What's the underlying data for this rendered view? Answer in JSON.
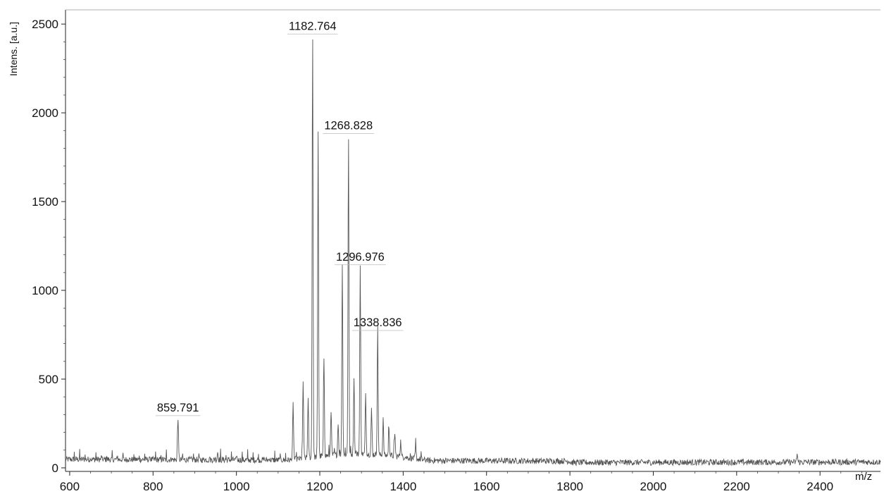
{
  "chart_data": {
    "type": "line",
    "title": "",
    "xlabel": "m/z",
    "ylabel": "Intens. [a.u.]",
    "xlim": [
      590,
      2545
    ],
    "ylim": [
      -20,
      2580
    ],
    "x_ticks": [
      600,
      800,
      1000,
      1200,
      1400,
      1600,
      1800,
      2000,
      2200,
      2400
    ],
    "x_tick_labels": [
      "600",
      "800",
      "1000",
      "1200",
      "1400",
      "1600",
      "1800",
      "2000",
      "2200",
      "2400"
    ],
    "y_ticks": [
      0,
      500,
      1000,
      1500,
      2000,
      2500
    ],
    "y_tick_labels": [
      "0",
      "500",
      "1000",
      "1500",
      "2000",
      "2500"
    ],
    "grid": false,
    "line_color": "#555555",
    "series": [
      {
        "peaks": [
          {
            "x": 859.791,
            "y": 290,
            "label": "859.791"
          },
          {
            "x": 955,
            "y": 90
          },
          {
            "x": 1136,
            "y": 360
          },
          {
            "x": 1160,
            "y": 490
          },
          {
            "x": 1172,
            "y": 380
          },
          {
            "x": 1182.764,
            "y": 2440,
            "label": "1182.764"
          },
          {
            "x": 1196,
            "y": 1880
          },
          {
            "x": 1210,
            "y": 620
          },
          {
            "x": 1227,
            "y": 330
          },
          {
            "x": 1244,
            "y": 260
          },
          {
            "x": 1254,
            "y": 1150
          },
          {
            "x": 1268.828,
            "y": 1880,
            "label": "1268.828"
          },
          {
            "x": 1282,
            "y": 520
          },
          {
            "x": 1296.976,
            "y": 1140,
            "label": "1296.976"
          },
          {
            "x": 1310,
            "y": 420
          },
          {
            "x": 1324,
            "y": 330
          },
          {
            "x": 1338.836,
            "y": 770,
            "label": "1338.836"
          },
          {
            "x": 1352,
            "y": 260
          },
          {
            "x": 1366,
            "y": 230
          },
          {
            "x": 1380,
            "y": 200
          },
          {
            "x": 1394,
            "y": 150
          },
          {
            "x": 1430,
            "y": 110
          },
          {
            "x": 2345,
            "y": 80
          }
        ]
      }
    ],
    "peak_labels": [
      {
        "x": 859.791,
        "y": 290,
        "text": "859.791"
      },
      {
        "x": 1182.764,
        "y": 2440,
        "text": "1182.764"
      },
      {
        "x": 1268.828,
        "y": 1880,
        "text": "1268.828"
      },
      {
        "x": 1296.976,
        "y": 1140,
        "text": "1296.976"
      },
      {
        "x": 1338.836,
        "y": 770,
        "text": "1338.836"
      }
    ]
  }
}
